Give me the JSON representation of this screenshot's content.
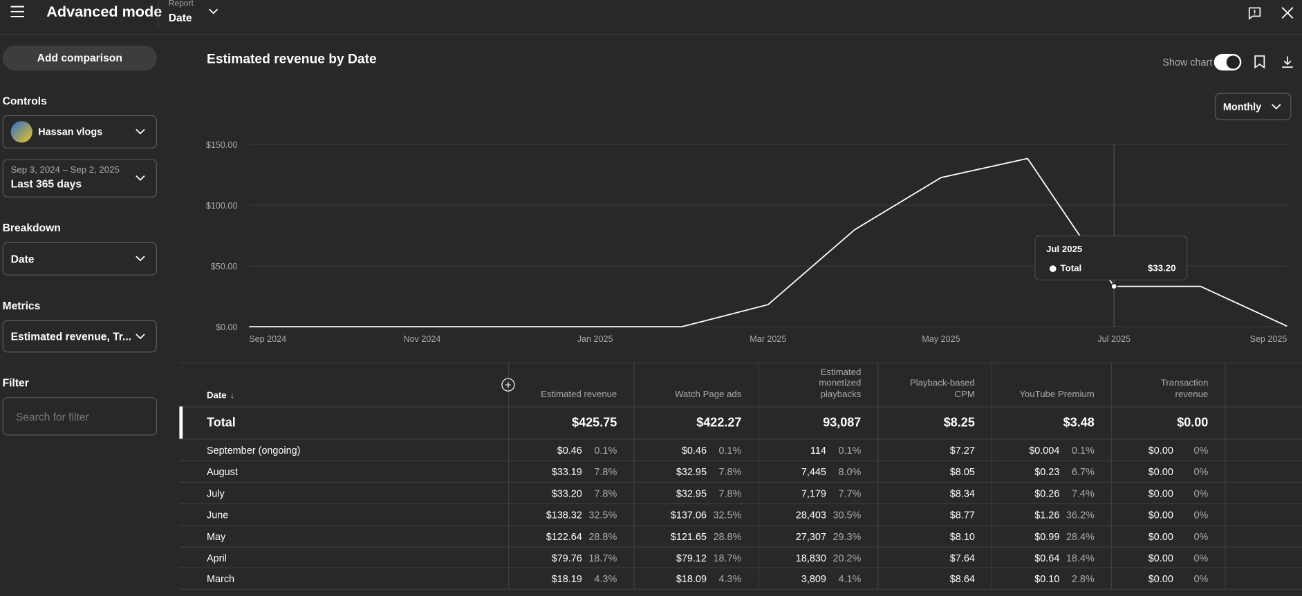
{
  "header": {
    "title": "Advanced mode",
    "report_label": "Report",
    "report_value": "Date"
  },
  "sidebar": {
    "add_comparison": "Add comparison",
    "controls_heading": "Controls",
    "channel": "Hassan vlogs",
    "date_range": "Sep 3, 2024 – Sep 2, 2025",
    "date_preset": "Last 365 days",
    "breakdown_heading": "Breakdown",
    "breakdown": "Date",
    "metrics_heading": "Metrics",
    "metrics": "Estimated revenue, Tr...",
    "filter_heading": "Filter",
    "filter_placeholder": "Search for filter"
  },
  "chart_controls": {
    "show_chart": "Show chart",
    "interval": "Monthly"
  },
  "chart_data": {
    "type": "line",
    "title": "Estimated revenue by Date",
    "categories": [
      "Sep 2024",
      null,
      "Nov 2024",
      null,
      "Jan 2025",
      null,
      "Mar 2025",
      null,
      "May 2025",
      null,
      "Jul 2025",
      null,
      "Sep 2025"
    ],
    "series": [
      {
        "name": "Total",
        "color": "#ffffff",
        "values": [
          0,
          0,
          0,
          0,
          0,
          0,
          18.19,
          79.76,
          122.64,
          138.32,
          33.2,
          33.19,
          0.46
        ]
      }
    ],
    "ylim": [
      0,
      150
    ],
    "yticks": [
      {
        "value": 0,
        "label": "$0.00"
      },
      {
        "value": 50,
        "label": "$50.00"
      },
      {
        "value": 100,
        "label": "$100.00"
      },
      {
        "value": 150,
        "label": "$150.00"
      }
    ],
    "grid": true,
    "tooltip": {
      "title": "Jul 2025",
      "value_label": "$33.20"
    }
  },
  "table": {
    "date_header": "Date",
    "headers": [
      "Estimated revenue",
      "Watch Page ads",
      "Estimated monetized playbacks",
      "Playback-based CPM",
      "YouTube Premium",
      "Transaction revenue"
    ],
    "total": {
      "label": "Total",
      "cells": [
        "$425.75",
        "$422.27",
        "93,087",
        "$8.25",
        "$3.48",
        "$0.00"
      ]
    },
    "rows": [
      {
        "label": "September (ongoing)",
        "cells": [
          [
            "$0.46",
            "0.1%"
          ],
          [
            "$0.46",
            "0.1%"
          ],
          [
            "114",
            "0.1%"
          ],
          [
            "$7.27"
          ],
          [
            "$0.004",
            "0.1%"
          ],
          [
            "$0.00",
            "0%"
          ]
        ]
      },
      {
        "label": "August",
        "cells": [
          [
            "$33.19",
            "7.8%"
          ],
          [
            "$32.95",
            "7.8%"
          ],
          [
            "7,445",
            "8.0%"
          ],
          [
            "$8.05"
          ],
          [
            "$0.23",
            "6.7%"
          ],
          [
            "$0.00",
            "0%"
          ]
        ]
      },
      {
        "label": "July",
        "cells": [
          [
            "$33.20",
            "7.8%"
          ],
          [
            "$32.95",
            "7.8%"
          ],
          [
            "7,179",
            "7.7%"
          ],
          [
            "$8.34"
          ],
          [
            "$0.26",
            "7.4%"
          ],
          [
            "$0.00",
            "0%"
          ]
        ]
      },
      {
        "label": "June",
        "cells": [
          [
            "$138.32",
            "32.5%"
          ],
          [
            "$137.06",
            "32.5%"
          ],
          [
            "28,403",
            "30.5%"
          ],
          [
            "$8.77"
          ],
          [
            "$1.26",
            "36.2%"
          ],
          [
            "$0.00",
            "0%"
          ]
        ]
      },
      {
        "label": "May",
        "cells": [
          [
            "$122.64",
            "28.8%"
          ],
          [
            "$121.65",
            "28.8%"
          ],
          [
            "27,307",
            "29.3%"
          ],
          [
            "$8.10"
          ],
          [
            "$0.99",
            "28.4%"
          ],
          [
            "$0.00",
            "0%"
          ]
        ]
      },
      {
        "label": "April",
        "cells": [
          [
            "$79.76",
            "18.7%"
          ],
          [
            "$79.12",
            "18.7%"
          ],
          [
            "18,830",
            "20.2%"
          ],
          [
            "$7.64"
          ],
          [
            "$0.64",
            "18.4%"
          ],
          [
            "$0.00",
            "0%"
          ]
        ]
      },
      {
        "label": "March",
        "cells": [
          [
            "$18.19",
            "4.3%"
          ],
          [
            "$18.09",
            "4.3%"
          ],
          [
            "3,809",
            "4.1%"
          ],
          [
            "$8.64"
          ],
          [
            "$0.10",
            "2.8%"
          ],
          [
            "$0.00",
            "0%"
          ]
        ]
      }
    ]
  }
}
